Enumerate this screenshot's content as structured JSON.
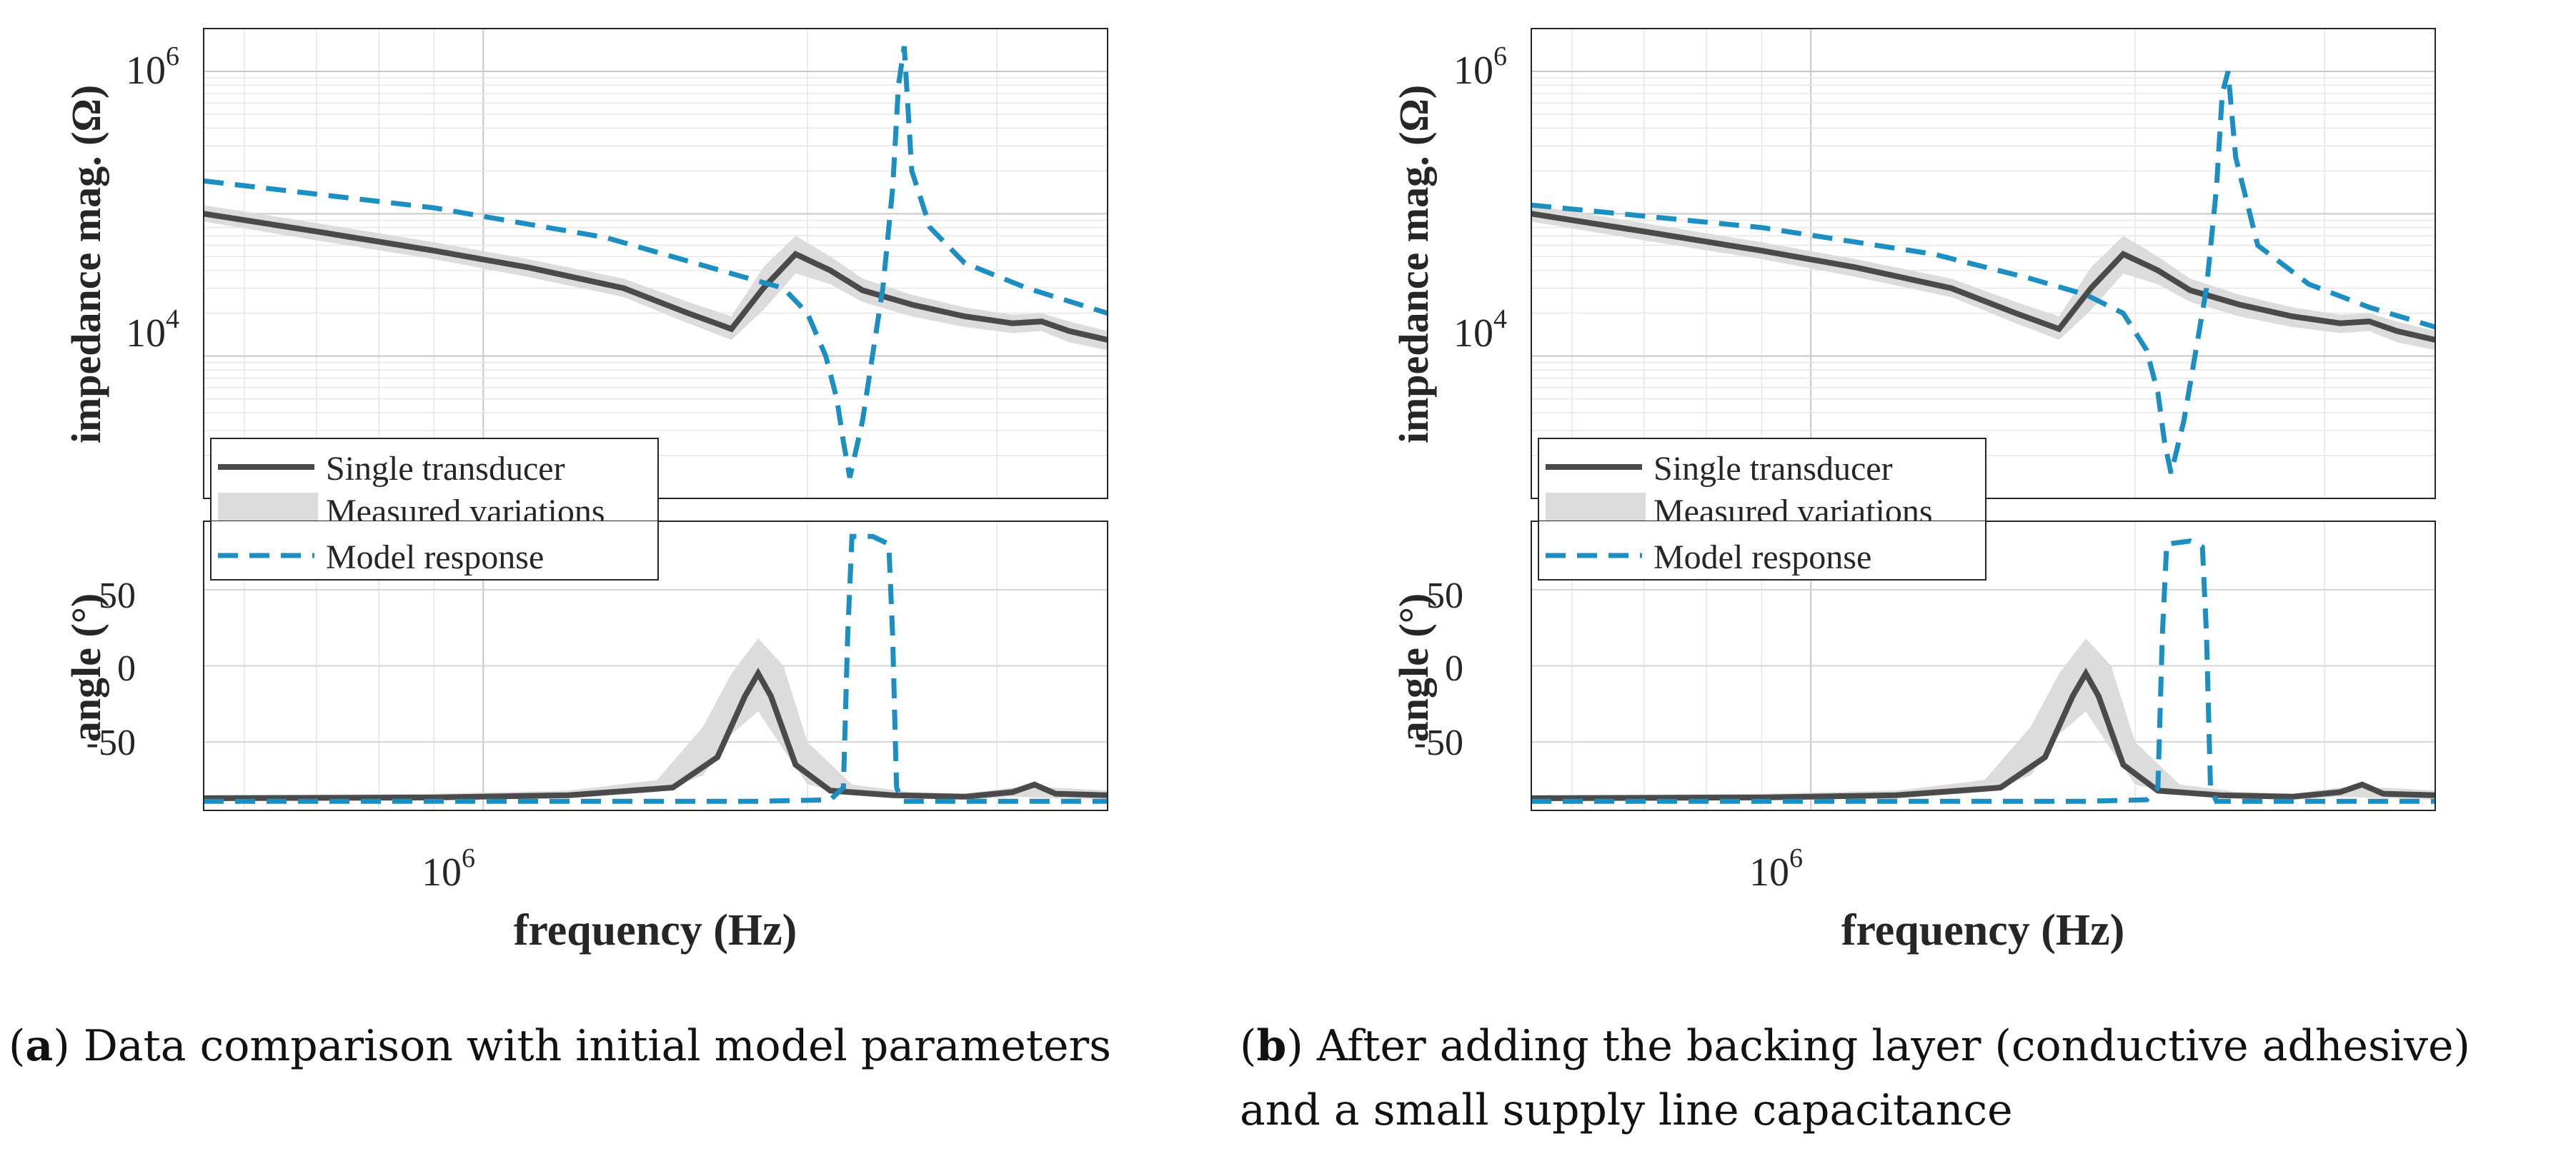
{
  "panels": [
    {
      "id": "a",
      "caption_label": "a",
      "caption_lines": [
        "Data comparison with initial model parameters"
      ],
      "mag_ylabel": "impedance mag. (Ω)",
      "angle_ylabel": "angle (°)",
      "xlabel": "frequency (Hz)",
      "x_tick": "10",
      "x_tick_exp": "6",
      "mag_tick_1e6": "10",
      "mag_tick_1e6_exp": "6",
      "mag_tick_1e4": "10",
      "mag_tick_1e4_exp": "4",
      "angle_ticks": [
        "50",
        "0",
        "-50"
      ],
      "legend": [
        "Single transducer",
        "Measured variations",
        "Model response"
      ]
    },
    {
      "id": "b",
      "caption_label": "b",
      "caption_lines": [
        "After adding the backing layer (conductive adhesive)",
        "and a small supply line capacitance"
      ],
      "mag_ylabel": "impedance mag. (Ω)",
      "angle_ylabel": "angle (°)",
      "xlabel": "frequency (Hz)",
      "x_tick": "10",
      "x_tick_exp": "6",
      "mag_tick_1e6": "10",
      "mag_tick_1e6_exp": "6",
      "mag_tick_1e4": "10",
      "mag_tick_1e4_exp": "4",
      "angle_ticks": [
        "50",
        "0",
        "-50"
      ],
      "legend": [
        "Single transducer",
        "Measured variations",
        "Model response"
      ]
    }
  ],
  "chart_data": [
    {
      "type": "line",
      "panel": "a",
      "subplot": "impedance magnitude",
      "xscale": "log",
      "yscale": "log",
      "xlim": [
        550000,
        3800000
      ],
      "ylim": [
        1000,
        2000000
      ],
      "xlabel": "frequency (Hz)",
      "ylabel": "impedance mag. (Ω)",
      "grid": true,
      "legend_position": "bottom-left",
      "series": [
        {
          "name": "Single transducer",
          "style": "solid",
          "color": "#4a4a4a",
          "x": [
            550000,
            700000,
            900000,
            1100000,
            1350000,
            1550000,
            1700000,
            1820000,
            1950000,
            2100000,
            2250000,
            2500000,
            2800000,
            3100000,
            3300000,
            3500000,
            3800000
          ],
          "y": [
            100000,
            75000,
            55000,
            42000,
            30000,
            20000,
            15500,
            30000,
            52000,
            40000,
            29000,
            23000,
            19000,
            17000,
            17500,
            15000,
            13000
          ]
        },
        {
          "name": "Measured variations",
          "style": "band",
          "color": "#d9d9d9",
          "x": [
            550000,
            700000,
            900000,
            1100000,
            1350000,
            1550000,
            1700000,
            1820000,
            1950000,
            2100000,
            2250000,
            2500000,
            2800000,
            3100000,
            3300000,
            3500000,
            3800000
          ],
          "lower": [
            88000,
            65000,
            48000,
            36000,
            26000,
            17000,
            13000,
            21000,
            38000,
            32000,
            24000,
            19000,
            16000,
            14500,
            15000,
            12500,
            11000
          ],
          "upper": [
            115000,
            86000,
            63000,
            48000,
            35000,
            24000,
            19000,
            42000,
            70000,
            50000,
            35000,
            27000,
            22000,
            19500,
            20000,
            17500,
            15000
          ]
        },
        {
          "name": "Model response",
          "style": "dashed",
          "color": "#1b8ec2",
          "x": [
            550000,
            900000,
            1300000,
            1700000,
            1900000,
            2000000,
            2080000,
            2130000,
            2160000,
            2190000,
            2250000,
            2350000,
            2400000,
            2430000,
            2460000,
            2500000,
            2600000,
            2800000,
            3200000,
            3800000
          ],
          "y": [
            170000,
            110000,
            68000,
            38000,
            30000,
            20000,
            10000,
            5000,
            2500,
            1400,
            3500,
            30000,
            150000,
            800000,
            1500000,
            200000,
            80000,
            45000,
            30000,
            20000
          ]
        }
      ]
    },
    {
      "type": "line",
      "panel": "a",
      "subplot": "angle",
      "xscale": "log",
      "xlim": [
        550000,
        3800000
      ],
      "ylim": [
        -95,
        95
      ],
      "xlabel": "frequency (Hz)",
      "ylabel": "angle (°)",
      "grid": true,
      "series": [
        {
          "name": "Single transducer",
          "style": "solid",
          "color": "#4a4a4a",
          "x": [
            550000,
            900000,
            1200000,
            1500000,
            1650000,
            1750000,
            1800000,
            1850000,
            1950000,
            2100000,
            2400000,
            2800000,
            3100000,
            3250000,
            3400000,
            3800000
          ],
          "y": [
            -87,
            -86.5,
            -85,
            -80,
            -60,
            -20,
            -5,
            -20,
            -65,
            -82,
            -85,
            -86,
            -83,
            -78,
            -84,
            -85
          ]
        },
        {
          "name": "Measured variations",
          "style": "band",
          "color": "#d9d9d9",
          "x": [
            550000,
            900000,
            1200000,
            1450000,
            1600000,
            1700000,
            1800000,
            1900000,
            2000000,
            2200000,
            2500000,
            2800000,
            3100000,
            3400000,
            3800000
          ],
          "lower": [
            -89,
            -88,
            -87,
            -83,
            -72,
            -45,
            -30,
            -55,
            -78,
            -85,
            -87,
            -88,
            -86,
            -87,
            -88
          ],
          "upper": [
            -85,
            -84,
            -82,
            -75,
            -40,
            -5,
            18,
            0,
            -50,
            -78,
            -83,
            -84,
            -80,
            -80,
            -82
          ]
        },
        {
          "name": "Model response",
          "style": "dashed",
          "color": "#1b8ec2",
          "x": [
            550000,
            1800000,
            2100000,
            2160000,
            2180000,
            2200000,
            2300000,
            2380000,
            2400000,
            2420000,
            2450000,
            3800000
          ],
          "y": [
            -89,
            -89,
            -88,
            -80,
            20,
            85,
            85,
            80,
            20,
            -80,
            -89,
            -89
          ]
        }
      ]
    },
    {
      "type": "line",
      "panel": "b",
      "subplot": "impedance magnitude",
      "xscale": "log",
      "yscale": "log",
      "xlim": [
        550000,
        3800000
      ],
      "ylim": [
        1000,
        2000000
      ],
      "xlabel": "frequency (Hz)",
      "ylabel": "impedance mag. (Ω)",
      "grid": true,
      "legend_position": "bottom-left",
      "series": [
        {
          "name": "Single transducer",
          "style": "solid",
          "color": "#4a4a4a",
          "x": [
            550000,
            700000,
            900000,
            1100000,
            1350000,
            1550000,
            1700000,
            1820000,
            1950000,
            2100000,
            2250000,
            2500000,
            2800000,
            3100000,
            3300000,
            3500000,
            3800000
          ],
          "y": [
            100000,
            75000,
            55000,
            42000,
            30000,
            20000,
            15500,
            30000,
            52000,
            40000,
            29000,
            23000,
            19000,
            17000,
            17500,
            15000,
            13000
          ]
        },
        {
          "name": "Measured variations",
          "style": "band",
          "color": "#d9d9d9",
          "x": [
            550000,
            700000,
            900000,
            1100000,
            1350000,
            1550000,
            1700000,
            1820000,
            1950000,
            2100000,
            2250000,
            2500000,
            2800000,
            3100000,
            3300000,
            3500000,
            3800000
          ],
          "lower": [
            88000,
            65000,
            48000,
            36000,
            26000,
            17000,
            13000,
            21000,
            38000,
            32000,
            24000,
            19000,
            16000,
            14500,
            15000,
            12500,
            11000
          ],
          "upper": [
            115000,
            86000,
            63000,
            48000,
            35000,
            24000,
            19000,
            42000,
            70000,
            50000,
            35000,
            27000,
            22000,
            19500,
            20000,
            17500,
            15000
          ]
        },
        {
          "name": "Model response",
          "style": "dashed",
          "color": "#1b8ec2",
          "x": [
            550000,
            900000,
            1300000,
            1600000,
            1800000,
            1950000,
            2050000,
            2100000,
            2130000,
            2160000,
            2220000,
            2330000,
            2380000,
            2410000,
            2440000,
            2480000,
            2600000,
            2900000,
            3300000,
            3800000
          ],
          "y": [
            115000,
            80000,
            52000,
            35000,
            27000,
            20000,
            11000,
            5500,
            2500,
            1500,
            3500,
            30000,
            150000,
            700000,
            1000000,
            250000,
            60000,
            32000,
            22000,
            16000
          ]
        }
      ]
    },
    {
      "type": "line",
      "panel": "b",
      "subplot": "angle",
      "xscale": "log",
      "xlim": [
        550000,
        3800000
      ],
      "ylim": [
        -95,
        95
      ],
      "xlabel": "frequency (Hz)",
      "ylabel": "angle (°)",
      "grid": true,
      "series": [
        {
          "name": "Single transducer",
          "style": "solid",
          "color": "#4a4a4a",
          "x": [
            550000,
            900000,
            1200000,
            1500000,
            1650000,
            1750000,
            1800000,
            1850000,
            1950000,
            2100000,
            2400000,
            2800000,
            3100000,
            3250000,
            3400000,
            3800000
          ],
          "y": [
            -87,
            -86.5,
            -85,
            -80,
            -60,
            -20,
            -5,
            -20,
            -65,
            -82,
            -85,
            -86,
            -83,
            -78,
            -84,
            -85
          ]
        },
        {
          "name": "Measured variations",
          "style": "band",
          "color": "#d9d9d9",
          "x": [
            550000,
            900000,
            1200000,
            1450000,
            1600000,
            1700000,
            1800000,
            1900000,
            2000000,
            2200000,
            2500000,
            2800000,
            3100000,
            3400000,
            3800000
          ],
          "lower": [
            -89,
            -88,
            -87,
            -83,
            -72,
            -45,
            -30,
            -55,
            -78,
            -85,
            -87,
            -88,
            -86,
            -87,
            -88
          ],
          "upper": [
            -85,
            -84,
            -82,
            -75,
            -40,
            -5,
            18,
            0,
            -50,
            -78,
            -83,
            -84,
            -80,
            -80,
            -82
          ]
        },
        {
          "name": "Model response",
          "style": "dashed",
          "color": "#1b8ec2",
          "x": [
            550000,
            1800000,
            2050000,
            2100000,
            2120000,
            2140000,
            2250000,
            2310000,
            2330000,
            2350000,
            2380000,
            3800000
          ],
          "y": [
            -89,
            -89,
            -88,
            -80,
            20,
            80,
            82,
            78,
            20,
            -80,
            -89,
            -89
          ]
        }
      ]
    }
  ]
}
